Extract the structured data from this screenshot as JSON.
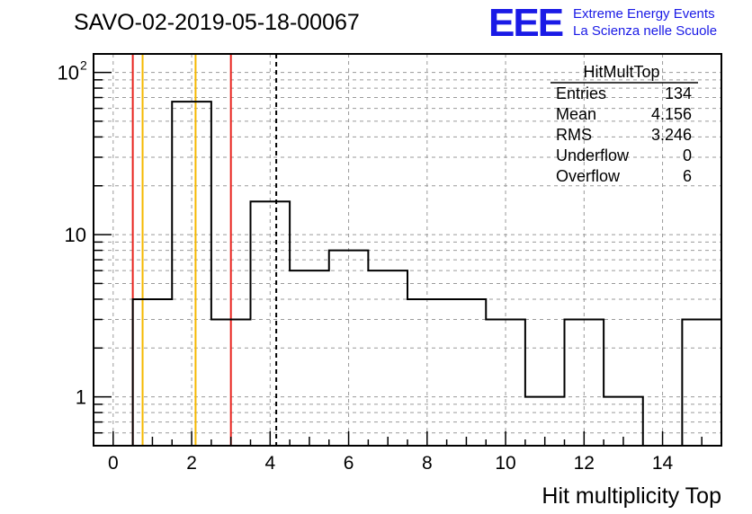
{
  "chart_data": {
    "type": "histogram",
    "title": "SAVO-02-2019-05-18-00067",
    "xlabel": "Hit multiplicity Top",
    "ylabel": "",
    "y_scale": "log",
    "xlim": [
      -0.5,
      15.5
    ],
    "ylim": [
      0.5,
      130
    ],
    "bin_edges": [
      -0.5,
      0.5,
      1.5,
      2.5,
      3.5,
      4.5,
      5.5,
      6.5,
      7.5,
      8.5,
      9.5,
      10.5,
      11.5,
      12.5,
      13.5,
      14.5,
      15.5
    ],
    "values": [
      0,
      4,
      66,
      3,
      16,
      6,
      8,
      6,
      4,
      4,
      3,
      1,
      3,
      1,
      0,
      3
    ],
    "x_ticks": [
      {
        "value": 0,
        "label": "0"
      },
      {
        "value": 2,
        "label": "2"
      },
      {
        "value": 4,
        "label": "4"
      },
      {
        "value": 6,
        "label": "6"
      },
      {
        "value": 8,
        "label": "8"
      },
      {
        "value": 10,
        "label": "10"
      },
      {
        "value": 12,
        "label": "12"
      },
      {
        "value": 14,
        "label": "14"
      }
    ],
    "y_ticks": [
      {
        "value": 1,
        "base": "1",
        "exp": ""
      },
      {
        "value": 10,
        "base": "10",
        "exp": ""
      },
      {
        "value": 100,
        "base": "10",
        "exp": "2"
      }
    ],
    "vertical_lines": [
      {
        "x": 0.5,
        "color": "#e8231e",
        "style": "solid"
      },
      {
        "x": 0.75,
        "color": "#f5b800",
        "style": "solid"
      },
      {
        "x": 2.1,
        "color": "#f5b800",
        "style": "solid"
      },
      {
        "x": 3.0,
        "color": "#e8231e",
        "style": "solid"
      },
      {
        "x": 4.156,
        "color": "#000000",
        "style": "dashed"
      }
    ],
    "grid": true,
    "stats_box": {
      "title": "HitMultTop",
      "rows": [
        {
          "label": "Entries",
          "value": "134"
        },
        {
          "label": "Mean",
          "value": "4.156"
        },
        {
          "label": "RMS",
          "value": "3.246"
        },
        {
          "label": "Underflow",
          "value": "0"
        },
        {
          "label": "Overflow",
          "value": "6"
        }
      ]
    }
  },
  "logo": {
    "mark": "EEE",
    "line1": "Extreme Energy Events",
    "line2": "La Scienza nelle Scuole",
    "color": "#1a1ae6"
  }
}
